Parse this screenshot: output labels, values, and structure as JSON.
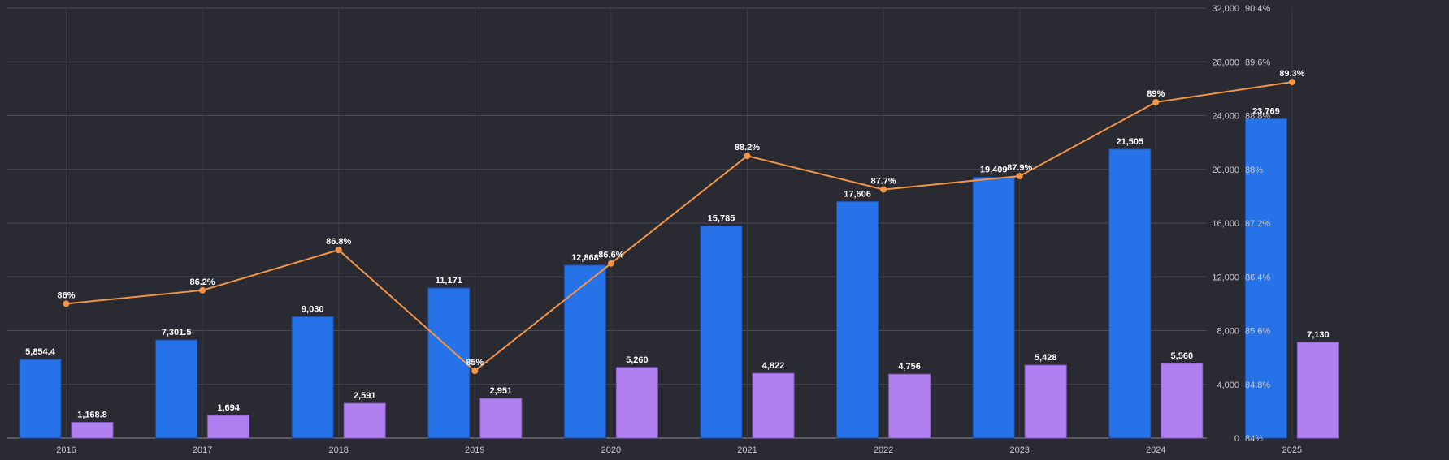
{
  "chart_data": {
    "type": "bar",
    "categories": [
      "2016",
      "2017",
      "2018",
      "2019",
      "2020",
      "2021",
      "2022",
      "2023",
      "2024",
      "2025"
    ],
    "series": [
      {
        "type": "bar",
        "axis": "left",
        "color": "#2672e8",
        "values": [
          5854.4,
          7301.5,
          9030,
          11171,
          12868,
          15785,
          17606,
          19409,
          21505,
          23769
        ],
        "labels": [
          "5,854.4",
          "7,301.5",
          "9,030",
          "11,171",
          "12,868",
          "15,785",
          "17,606",
          "19,409",
          "21,505",
          "23,769"
        ]
      },
      {
        "type": "bar",
        "axis": "left",
        "color": "#b07ff0",
        "values": [
          1168.8,
          1694,
          2591,
          2951,
          5260,
          4822,
          4756,
          5428,
          5560,
          7130
        ],
        "labels": [
          "1,168.8",
          "1,694",
          "2,591",
          "2,951",
          "5,260",
          "4,822",
          "4,756",
          "5,428",
          "5,560",
          "7,130"
        ]
      },
      {
        "type": "line",
        "axis": "right",
        "color": "#f29545",
        "values": [
          86,
          86.2,
          86.8,
          85,
          86.6,
          88.2,
          87.7,
          87.9,
          89,
          89.3
        ],
        "labels": [
          "86%",
          "86.2%",
          "86.8%",
          "85%",
          "86.6%",
          "88.2%",
          "87.7%",
          "87.9%",
          "89%",
          "89.3%"
        ]
      }
    ],
    "left_axis": {
      "min": 0,
      "max": 32000,
      "ticks": [
        0,
        4000,
        8000,
        12000,
        16000,
        20000,
        24000,
        28000,
        32000
      ],
      "tick_labels": [
        "0",
        "4,000",
        "8,000",
        "12,000",
        "16,000",
        "20,000",
        "24,000",
        "28,000",
        "32,000"
      ]
    },
    "right_axis": {
      "min": 84,
      "max": 90.4,
      "ticks": [
        84,
        84.8,
        85.6,
        86.4,
        87.2,
        88,
        88.8,
        89.6,
        90.4
      ],
      "tick_labels": [
        "84%",
        "84.8%",
        "85.6%",
        "86.4%",
        "87.2%",
        "88%",
        "88.8%",
        "89.6%",
        "90.4%"
      ]
    },
    "grid": true,
    "legend": "none",
    "title": "",
    "xlabel": "",
    "ylabel": ""
  }
}
